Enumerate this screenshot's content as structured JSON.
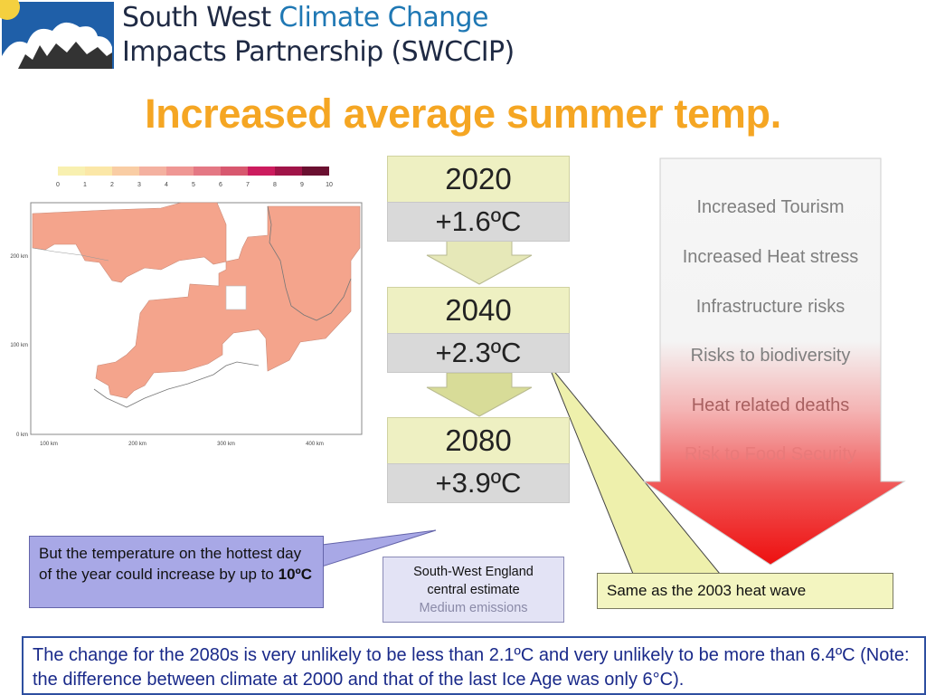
{
  "header": {
    "org_line1_prefix": "South West ",
    "org_line1_highlight": "Climate Change",
    "org_line2": "Impacts Partnership (SWCCIP)"
  },
  "title": "Increased average summer temp.",
  "map": {
    "legend_ticks": [
      "0",
      "1",
      "2",
      "3",
      "4",
      "5",
      "6",
      "7",
      "8",
      "9",
      "10"
    ],
    "legend_colors": [
      "#f8f0b0",
      "#fbe7a7",
      "#f9cda4",
      "#f4b1a0",
      "#ef9794",
      "#e47884",
      "#d8586f",
      "#cc1c5e",
      "#a01448",
      "#6a1030"
    ],
    "y_ticks": [
      "200 km",
      "100 km",
      "0 km"
    ],
    "x_ticks": [
      "100 km",
      "200 km",
      "300 km",
      "400 km"
    ]
  },
  "projections": [
    {
      "year": "2020",
      "temp": "+1.6ºC"
    },
    {
      "year": "2040",
      "temp": "+2.3ºC"
    },
    {
      "year": "2080",
      "temp": "+3.9ºC"
    }
  ],
  "impacts": [
    {
      "label": "Increased Tourism",
      "color": "#7f7f7f"
    },
    {
      "label": "Increased Heat stress",
      "color": "#7f7f7f"
    },
    {
      "label": "Infrastructure risks",
      "color": "#7f7f7f"
    },
    {
      "label": "Risks to biodiversity",
      "color": "#7f7f7f"
    },
    {
      "label": "Heat related deaths",
      "color": "#a86060"
    },
    {
      "label": "Risk to Food Security",
      "color": "#e87a7a"
    }
  ],
  "callouts": {
    "hottest_text": "But the temperature on the hottest day of the year could increase by up to ",
    "hottest_bold": "10ºC",
    "estimate_line1": "South-West England",
    "estimate_line2": "central estimate",
    "estimate_line3": "Medium emissions",
    "heatwave": "Same as the 2003 heat wave"
  },
  "note": "The change for the 2080s is very unlikely to be less than 2.1ºC and very unlikely to be more than 6.4ºC (Note: the difference between climate at 2000 and that of the last Ice Age was only 6°C)."
}
